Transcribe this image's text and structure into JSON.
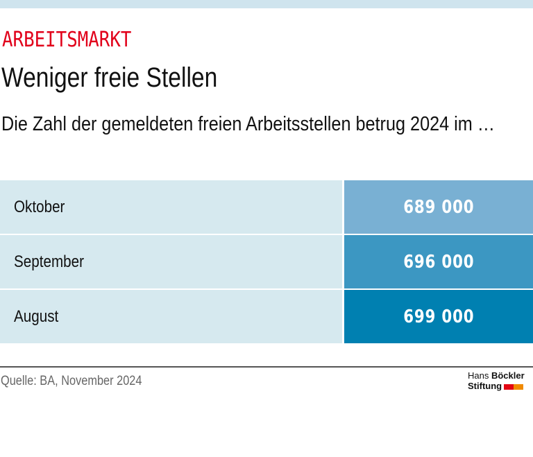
{
  "header": {
    "kicker": "ARBEITSMARKT",
    "title": "Weniger freie Stellen",
    "subtitle": "Die Zahl der gemeldeten freien Arbeitsstellen betrug 2024 im …"
  },
  "table": {
    "rows": [
      {
        "label": "Oktober",
        "value": "689 000",
        "color": "#79b0d3"
      },
      {
        "label": "September",
        "value": "696 000",
        "color": "#3c97c2"
      },
      {
        "label": "August",
        "value": "699 000",
        "color": "#0080b1"
      }
    ]
  },
  "footer": {
    "source": "Quelle: BA, November 2024",
    "logo_line1_regular": "Hans ",
    "logo_line1_bold": "Böckler",
    "logo_line2": "Stiftung",
    "logo_colors": [
      "#e30613",
      "#f08a00"
    ]
  },
  "chart_data": {
    "type": "table",
    "title": "Weniger freie Stellen",
    "subtitle": "Die Zahl der gemeldeten freien Arbeitsstellen betrug 2024 im …",
    "categories": [
      "Oktober",
      "September",
      "August"
    ],
    "values": [
      689000,
      696000,
      699000
    ],
    "source": "Quelle: BA, November 2024"
  }
}
